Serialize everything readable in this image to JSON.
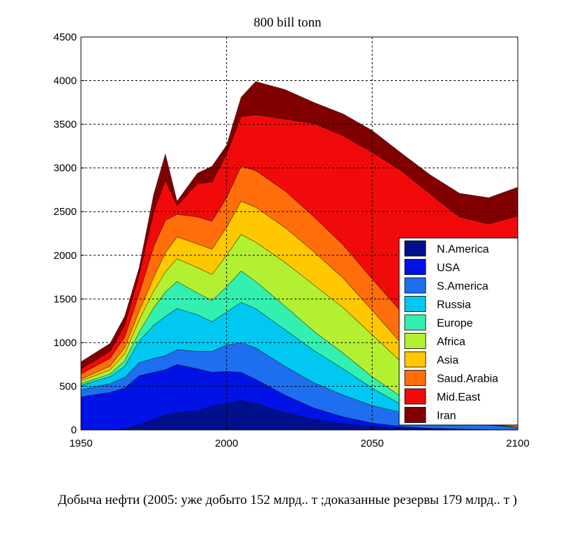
{
  "chart_data": {
    "type": "area",
    "stacked": true,
    "title": "800 bill tonn",
    "xlabel": "",
    "ylabel": "",
    "xlim": [
      1950,
      2100
    ],
    "ylim": [
      0,
      4500
    ],
    "x_ticks": [
      "1950",
      "2000",
      "2050",
      "2100"
    ],
    "y_ticks": [
      "0",
      "500",
      "1000",
      "1500",
      "2000",
      "2500",
      "3000",
      "3500",
      "4000",
      "4500"
    ],
    "grid": true,
    "legend_position": "lower-right",
    "x": [
      1950,
      1960,
      1965,
      1970,
      1975,
      1979,
      1983,
      1990,
      1995,
      2000,
      2005,
      2010,
      2020,
      2030,
      2040,
      2050,
      2060,
      2070,
      2080,
      2090,
      2100
    ],
    "series": [
      {
        "name": "N.America",
        "color": "#000f8c",
        "values": [
          0,
          0,
          10,
          60,
          120,
          170,
          200,
          220,
          270,
          300,
          340,
          300,
          200,
          120,
          70,
          40,
          20,
          10,
          5,
          2,
          0
        ]
      },
      {
        "name": "USA",
        "color": "#0012e6",
        "values": [
          380,
          430,
          470,
          560,
          540,
          520,
          550,
          480,
          390,
          370,
          320,
          280,
          200,
          130,
          80,
          40,
          20,
          10,
          5,
          2,
          0
        ]
      },
      {
        "name": "S.America",
        "color": "#1e6ef0",
        "values": [
          80,
          100,
          120,
          150,
          160,
          160,
          170,
          200,
          240,
          300,
          340,
          360,
          330,
          290,
          250,
          200,
          160,
          110,
          80,
          50,
          30
        ]
      },
      {
        "name": "Russia",
        "color": "#00c8f0",
        "values": [
          50,
          80,
          130,
          250,
          380,
          450,
          470,
          420,
          340,
          380,
          460,
          450,
          420,
          370,
          300,
          200,
          90,
          20,
          0,
          0,
          0
        ]
      },
      {
        "name": "Europe",
        "color": "#33f0b0",
        "values": [
          20,
          30,
          60,
          100,
          200,
          280,
          310,
          250,
          240,
          290,
          360,
          310,
          270,
          220,
          180,
          130,
          90,
          50,
          20,
          5,
          0
        ]
      },
      {
        "name": "Africa",
        "color": "#b4f032",
        "values": [
          30,
          50,
          80,
          140,
          190,
          230,
          260,
          290,
          300,
          360,
          420,
          450,
          500,
          530,
          520,
          480,
          400,
          200,
          50,
          0,
          0
        ]
      },
      {
        "name": "Asia",
        "color": "#ffc800",
        "values": [
          20,
          40,
          70,
          100,
          160,
          220,
          250,
          270,
          290,
          320,
          380,
          400,
          400,
          380,
          340,
          280,
          210,
          130,
          60,
          10,
          0
        ]
      },
      {
        "name": "Saud.Arabia",
        "color": "#ff6e0a",
        "values": [
          60,
          90,
          120,
          200,
          350,
          370,
          260,
          310,
          320,
          340,
          400,
          420,
          420,
          400,
          380,
          360,
          360,
          350,
          300,
          250,
          200
        ]
      },
      {
        "name": "Mid.East",
        "color": "#f00a0a",
        "values": [
          60,
          80,
          140,
          220,
          400,
          460,
          100,
          380,
          450,
          500,
          570,
          640,
          820,
          1070,
          1250,
          1450,
          1620,
          1820,
          1920,
          2040,
          2220
        ]
      },
      {
        "name": "Iran",
        "color": "#800000",
        "values": [
          80,
          90,
          100,
          80,
          200,
          300,
          50,
          120,
          180,
          100,
          220,
          380,
          340,
          240,
          250,
          250,
          200,
          220,
          270,
          300,
          330
        ]
      }
    ]
  },
  "caption": "Добыча нефти (2005: уже добыто 152 млрд.. т ;доказанные резервы  179 млрд.. т )"
}
